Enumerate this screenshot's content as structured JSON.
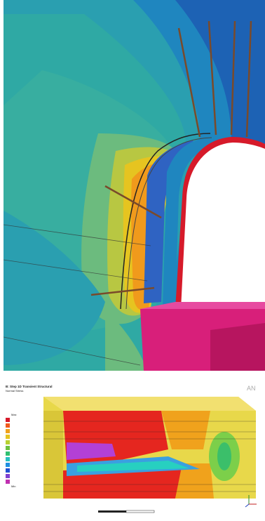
{
  "bottom_panel": {
    "title": "B: Step 1D Transient Structural",
    "subtitle": "Normal Stress",
    "legend_max": "Max",
    "legend_min": "Min",
    "logo": "AN"
  }
}
